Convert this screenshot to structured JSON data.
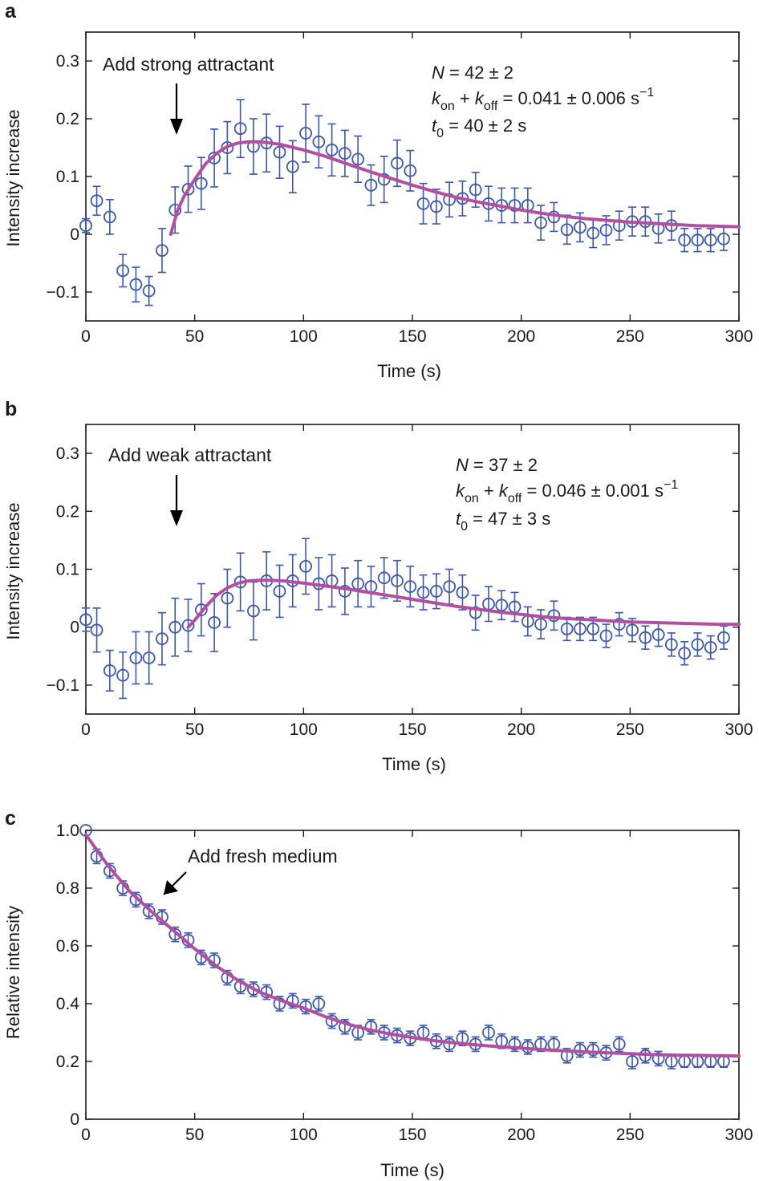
{
  "chart_data": [
    {
      "panel": "a",
      "type": "scatter",
      "xlabel": "Time (s)",
      "ylabel": "Intensity increase",
      "xlim": [
        0,
        300
      ],
      "ylim": [
        -0.15,
        0.35
      ],
      "xticks": [
        "0",
        "50",
        "100",
        "150",
        "200",
        "250",
        "300"
      ],
      "yticks": [
        "−0.1",
        "0",
        "0.1",
        "0.2",
        "0.3"
      ],
      "annotation": "Add strong attractant",
      "arrow_at_x": 41,
      "fit_text": {
        "line1": {
          "v1": "N",
          "rest": " = 42 ± 2"
        },
        "line2": {
          "v1": "k",
          "s1": "on",
          "mid": " + ",
          "v2": "k",
          "s2": "off",
          "rest": " = 0.041 ± 0.006 s",
          "sup": "−1"
        },
        "line3": {
          "v1": "t",
          "s1": "0",
          "rest": " = 40 ± 2 s"
        }
      },
      "series": [
        {
          "x": [
            0,
            5,
            11,
            17,
            23,
            29,
            35,
            41,
            47,
            53,
            59,
            65,
            71,
            77,
            83,
            89,
            95,
            101,
            107,
            113,
            119,
            125,
            131,
            137,
            143,
            149,
            155,
            161,
            167,
            173,
            179,
            185,
            191,
            197,
            203,
            209,
            215,
            221,
            227,
            233,
            239,
            245,
            251,
            257,
            263,
            269,
            275,
            281,
            287,
            293
          ],
          "y": [
            0.015,
            0.058,
            0.03,
            -0.063,
            -0.087,
            -0.098,
            -0.028,
            0.042,
            0.078,
            0.088,
            0.132,
            0.15,
            0.183,
            0.152,
            0.158,
            0.142,
            0.117,
            0.175,
            0.16,
            0.146,
            0.14,
            0.13,
            0.085,
            0.095,
            0.123,
            0.11,
            0.053,
            0.048,
            0.06,
            0.062,
            0.077,
            0.053,
            0.05,
            0.05,
            0.05,
            0.02,
            0.03,
            0.008,
            0.012,
            0.002,
            0.007,
            0.015,
            0.022,
            0.022,
            0.01,
            0.015,
            -0.01,
            -0.01,
            -0.01,
            -0.008
          ],
          "err": [
            0.012,
            0.025,
            0.03,
            0.028,
            0.03,
            0.025,
            0.038,
            0.04,
            0.04,
            0.045,
            0.05,
            0.045,
            0.05,
            0.048,
            0.05,
            0.045,
            0.045,
            0.05,
            0.045,
            0.045,
            0.04,
            0.04,
            0.035,
            0.04,
            0.04,
            0.035,
            0.035,
            0.03,
            0.03,
            0.03,
            0.03,
            0.03,
            0.03,
            0.03,
            0.03,
            0.03,
            0.025,
            0.025,
            0.025,
            0.025,
            0.025,
            0.025,
            0.025,
            0.025,
            0.025,
            0.025,
            0.02,
            0.02,
            0.02,
            0.02
          ]
        }
      ],
      "fit": {
        "x": [
          39,
          42,
          45,
          50,
          55,
          60,
          65,
          70,
          75,
          80,
          85,
          90,
          100,
          110,
          120,
          130,
          140,
          150,
          160,
          170,
          180,
          190,
          200,
          210,
          220,
          230,
          240,
          250,
          260,
          270,
          280,
          290,
          300
        ],
        "y": [
          0.0,
          0.04,
          0.065,
          0.095,
          0.122,
          0.14,
          0.152,
          0.158,
          0.16,
          0.16,
          0.158,
          0.155,
          0.146,
          0.135,
          0.122,
          0.109,
          0.097,
          0.085,
          0.074,
          0.064,
          0.056,
          0.049,
          0.042,
          0.036,
          0.031,
          0.027,
          0.024,
          0.021,
          0.019,
          0.017,
          0.015,
          0.014,
          0.013
        ]
      }
    },
    {
      "panel": "b",
      "type": "scatter",
      "xlabel": "Time (s)",
      "ylabel": "Intensity increase",
      "xlim": [
        0,
        300
      ],
      "ylim": [
        -0.15,
        0.35
      ],
      "xticks": [
        "0",
        "50",
        "100",
        "150",
        "200",
        "250",
        "300"
      ],
      "yticks": [
        "−0.1",
        "0",
        "0.1",
        "0.2",
        "0.3"
      ],
      "annotation": "Add weak attractant",
      "arrow_at_x": 41,
      "fit_text": {
        "line1": {
          "v1": "N",
          "rest": " = 37 ± 2"
        },
        "line2": {
          "v1": "k",
          "s1": "on",
          "mid": " + ",
          "v2": "k",
          "s2": "off",
          "rest": " = 0.046 ± 0.001 s",
          "sup": "−1"
        },
        "line3": {
          "v1": "t",
          "s1": "0",
          "rest": " = 47 ± 3 s"
        }
      },
      "series": [
        {
          "x": [
            0,
            5,
            11,
            17,
            23,
            29,
            35,
            41,
            47,
            53,
            59,
            65,
            71,
            77,
            83,
            89,
            95,
            101,
            107,
            113,
            119,
            125,
            131,
            137,
            143,
            149,
            155,
            161,
            167,
            173,
            179,
            185,
            191,
            197,
            203,
            209,
            215,
            221,
            227,
            233,
            239,
            245,
            251,
            257,
            263,
            269,
            275,
            281,
            287,
            293
          ],
          "y": [
            0.013,
            -0.005,
            -0.075,
            -0.083,
            -0.053,
            -0.053,
            -0.02,
            0.0,
            0.003,
            0.03,
            0.008,
            0.05,
            0.078,
            0.028,
            0.08,
            0.062,
            0.08,
            0.105,
            0.075,
            0.08,
            0.062,
            0.075,
            0.07,
            0.085,
            0.08,
            0.07,
            0.06,
            0.062,
            0.07,
            0.06,
            0.025,
            0.04,
            0.038,
            0.035,
            0.01,
            0.005,
            0.02,
            -0.003,
            -0.003,
            -0.003,
            -0.015,
            0.005,
            -0.005,
            -0.018,
            -0.013,
            -0.03,
            -0.045,
            -0.03,
            -0.035,
            -0.018
          ],
          "err": [
            0.02,
            0.038,
            0.035,
            0.04,
            0.045,
            0.045,
            0.045,
            0.05,
            0.045,
            0.045,
            0.05,
            0.05,
            0.05,
            0.05,
            0.05,
            0.045,
            0.045,
            0.048,
            0.045,
            0.045,
            0.04,
            0.04,
            0.035,
            0.035,
            0.035,
            0.035,
            0.03,
            0.03,
            0.03,
            0.03,
            0.03,
            0.03,
            0.025,
            0.025,
            0.025,
            0.025,
            0.025,
            0.02,
            0.02,
            0.02,
            0.02,
            0.02,
            0.02,
            0.02,
            0.02,
            0.02,
            0.02,
            0.02,
            0.02,
            0.02
          ]
        }
      ],
      "fit": {
        "x": [
          47,
          50,
          55,
          60,
          65,
          70,
          75,
          80,
          85,
          90,
          95,
          100,
          110,
          120,
          130,
          140,
          150,
          160,
          170,
          180,
          190,
          200,
          210,
          220,
          230,
          240,
          250,
          260,
          270,
          280,
          290,
          300
        ],
        "y": [
          0.0,
          0.012,
          0.035,
          0.055,
          0.068,
          0.076,
          0.08,
          0.081,
          0.081,
          0.08,
          0.078,
          0.076,
          0.071,
          0.066,
          0.06,
          0.054,
          0.048,
          0.042,
          0.036,
          0.031,
          0.026,
          0.022,
          0.018,
          0.015,
          0.013,
          0.011,
          0.009,
          0.008,
          0.007,
          0.006,
          0.005,
          0.005
        ]
      }
    },
    {
      "panel": "c",
      "type": "scatter",
      "xlabel": "Time (s)",
      "ylabel": "Relative intensity",
      "xlim": [
        0,
        300
      ],
      "ylim": [
        0,
        1.0
      ],
      "xticks": [
        "0",
        "50",
        "100",
        "150",
        "200",
        "250",
        "300"
      ],
      "yticks": [
        "0",
        "0.2",
        "0.4",
        "0.6",
        "0.8",
        "1.0"
      ],
      "annotation": "Add fresh medium",
      "arrow_at_x": 36,
      "series": [
        {
          "x": [
            0,
            5,
            11,
            17,
            23,
            29,
            35,
            41,
            47,
            53,
            59,
            65,
            71,
            77,
            83,
            89,
            95,
            101,
            107,
            113,
            119,
            125,
            131,
            137,
            143,
            149,
            155,
            161,
            167,
            173,
            179,
            185,
            191,
            197,
            203,
            209,
            215,
            221,
            227,
            233,
            239,
            245,
            251,
            257,
            263,
            269,
            275,
            281,
            287,
            293
          ],
          "y": [
            1.0,
            0.91,
            0.86,
            0.8,
            0.76,
            0.72,
            0.7,
            0.64,
            0.62,
            0.56,
            0.55,
            0.49,
            0.46,
            0.45,
            0.44,
            0.4,
            0.41,
            0.39,
            0.4,
            0.34,
            0.32,
            0.3,
            0.32,
            0.3,
            0.29,
            0.28,
            0.3,
            0.27,
            0.26,
            0.28,
            0.26,
            0.3,
            0.27,
            0.26,
            0.25,
            0.26,
            0.26,
            0.22,
            0.24,
            0.24,
            0.23,
            0.26,
            0.2,
            0.22,
            0.21,
            0.2,
            0.2,
            0.2,
            0.2,
            0.2
          ],
          "err": [
            0.0,
            0.025,
            0.025,
            0.025,
            0.025,
            0.025,
            0.025,
            0.025,
            0.025,
            0.025,
            0.025,
            0.025,
            0.025,
            0.025,
            0.025,
            0.025,
            0.025,
            0.025,
            0.025,
            0.025,
            0.025,
            0.025,
            0.025,
            0.025,
            0.025,
            0.025,
            0.025,
            0.025,
            0.025,
            0.025,
            0.025,
            0.025,
            0.025,
            0.025,
            0.025,
            0.025,
            0.025,
            0.025,
            0.025,
            0.025,
            0.025,
            0.025,
            0.025,
            0.025,
            0.025,
            0.025,
            0.02,
            0.02,
            0.02,
            0.02
          ]
        }
      ],
      "fit": {
        "x": [
          0,
          10,
          20,
          30,
          40,
          50,
          60,
          70,
          80,
          90,
          100,
          110,
          120,
          130,
          140,
          150,
          160,
          170,
          180,
          190,
          200,
          210,
          220,
          230,
          240,
          250,
          260,
          270,
          280,
          290,
          300
        ],
        "y": [
          0.985,
          0.88,
          0.79,
          0.72,
          0.655,
          0.59,
          0.53,
          0.48,
          0.44,
          0.41,
          0.385,
          0.355,
          0.33,
          0.31,
          0.295,
          0.283,
          0.272,
          0.264,
          0.257,
          0.251,
          0.246,
          0.241,
          0.237,
          0.233,
          0.23,
          0.227,
          0.224,
          0.222,
          0.221,
          0.22,
          0.219
        ]
      }
    }
  ]
}
